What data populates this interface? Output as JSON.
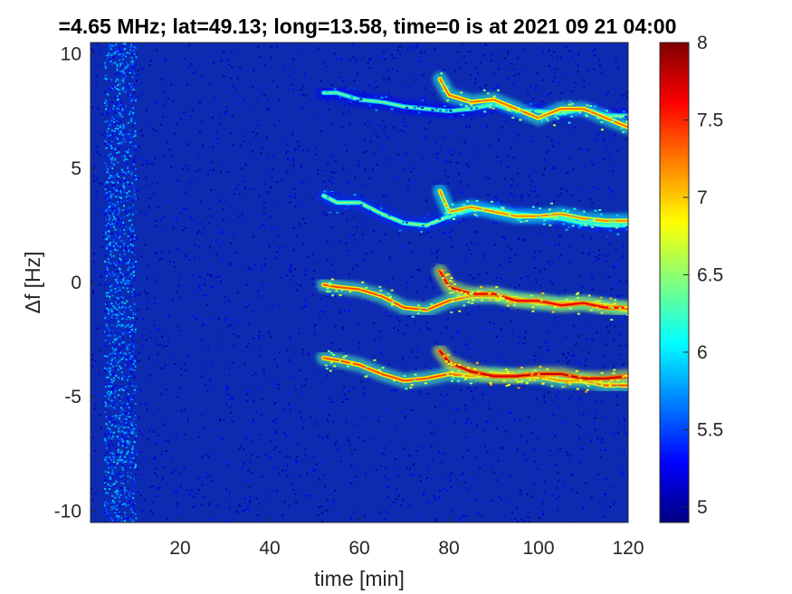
{
  "chart_data": {
    "type": "heatmap",
    "title": "=4.65 MHz;  lat=49.13; long=13.58, time=0 is at 2021 09 21 04:00",
    "xlabel": "time [min]",
    "ylabel": "Δf [Hz]",
    "xlim": [
      0,
      120
    ],
    "ylim": [
      -10.5,
      10.5
    ],
    "xticks": [
      20,
      40,
      60,
      80,
      100,
      120
    ],
    "xtick_labels": [
      "20",
      "40",
      "60",
      "80",
      "100",
      "120"
    ],
    "yticks": [
      10,
      5,
      0,
      -5,
      -10
    ],
    "ytick_labels": [
      "10",
      "5",
      "0",
      "-5",
      "-10"
    ],
    "colorbar": {
      "range": [
        4.9,
        8.0
      ],
      "ticks": [
        5,
        5.5,
        6,
        6.5,
        7,
        7.5,
        8
      ],
      "tick_labels": [
        "5",
        "5.5",
        "6",
        "6.5",
        "7",
        "7.5",
        "8"
      ],
      "colormap": "jet"
    },
    "background_level": 5.0,
    "noise_band": {
      "x_range": [
        3,
        10
      ],
      "level": 5.6
    },
    "traces": [
      {
        "name_visible": false,
        "x": [
          52,
          55,
          60,
          65,
          70,
          75,
          80,
          85,
          90,
          95,
          100,
          105,
          110,
          115,
          120
        ],
        "y": [
          8.3,
          8.3,
          8.0,
          7.9,
          7.7,
          7.6,
          7.5,
          7.6,
          7.8,
          7.5,
          7.5,
          7.4,
          7.6,
          7.3,
          7.3
        ],
        "level": 6.4
      },
      {
        "name_visible": false,
        "x": [
          78,
          80,
          85,
          90,
          95,
          100,
          105,
          110,
          115,
          120
        ],
        "y": [
          8.9,
          8.2,
          7.9,
          8.0,
          7.6,
          7.2,
          7.6,
          7.6,
          7.2,
          6.8
        ],
        "level": 7.3
      },
      {
        "name_visible": false,
        "x": [
          52,
          55,
          60,
          65,
          70,
          75,
          80,
          85,
          90,
          95,
          100,
          105,
          110,
          115,
          120
        ],
        "y": [
          3.8,
          3.5,
          3.5,
          3.0,
          2.6,
          2.5,
          2.9,
          3.2,
          3.2,
          3.0,
          2.9,
          2.8,
          2.6,
          2.5,
          2.5
        ],
        "level": 6.5
      },
      {
        "name_visible": false,
        "x": [
          78,
          80,
          85,
          90,
          95,
          100,
          105,
          110,
          115,
          120
        ],
        "y": [
          4.0,
          3.1,
          3.3,
          3.1,
          2.9,
          2.9,
          3.0,
          2.8,
          2.7,
          2.7
        ],
        "level": 7.2
      },
      {
        "name_visible": false,
        "x": [
          52,
          55,
          60,
          65,
          70,
          75,
          80,
          85,
          90,
          95,
          100,
          105,
          110,
          115,
          120
        ],
        "y": [
          -0.1,
          -0.2,
          -0.3,
          -0.6,
          -1.1,
          -1.2,
          -0.8,
          -0.6,
          -0.6,
          -0.7,
          -0.9,
          -0.9,
          -0.9,
          -1.0,
          -1.2
        ],
        "level": 7.4
      },
      {
        "name_visible": false,
        "x": [
          78,
          80,
          85,
          90,
          95,
          100,
          105,
          110,
          115,
          120
        ],
        "y": [
          0.5,
          -0.2,
          -0.5,
          -0.5,
          -0.8,
          -0.8,
          -1.0,
          -0.9,
          -1.1,
          -1.1
        ],
        "level": 7.7
      },
      {
        "name_visible": false,
        "x": [
          52,
          55,
          60,
          65,
          70,
          75,
          80,
          85,
          90,
          95,
          100,
          105,
          110,
          115,
          120
        ],
        "y": [
          -3.3,
          -3.4,
          -3.6,
          -4.0,
          -4.3,
          -4.2,
          -4.0,
          -4.1,
          -4.0,
          -4.1,
          -4.1,
          -4.3,
          -4.3,
          -4.5,
          -4.5
        ],
        "level": 7.4
      },
      {
        "name_visible": false,
        "x": [
          78,
          80,
          85,
          90,
          95,
          100,
          105,
          110,
          115,
          120
        ],
        "y": [
          -3.0,
          -3.5,
          -3.9,
          -4.1,
          -4.1,
          -4.0,
          -4.0,
          -4.2,
          -4.2,
          -4.1
        ],
        "level": 7.8
      }
    ]
  }
}
